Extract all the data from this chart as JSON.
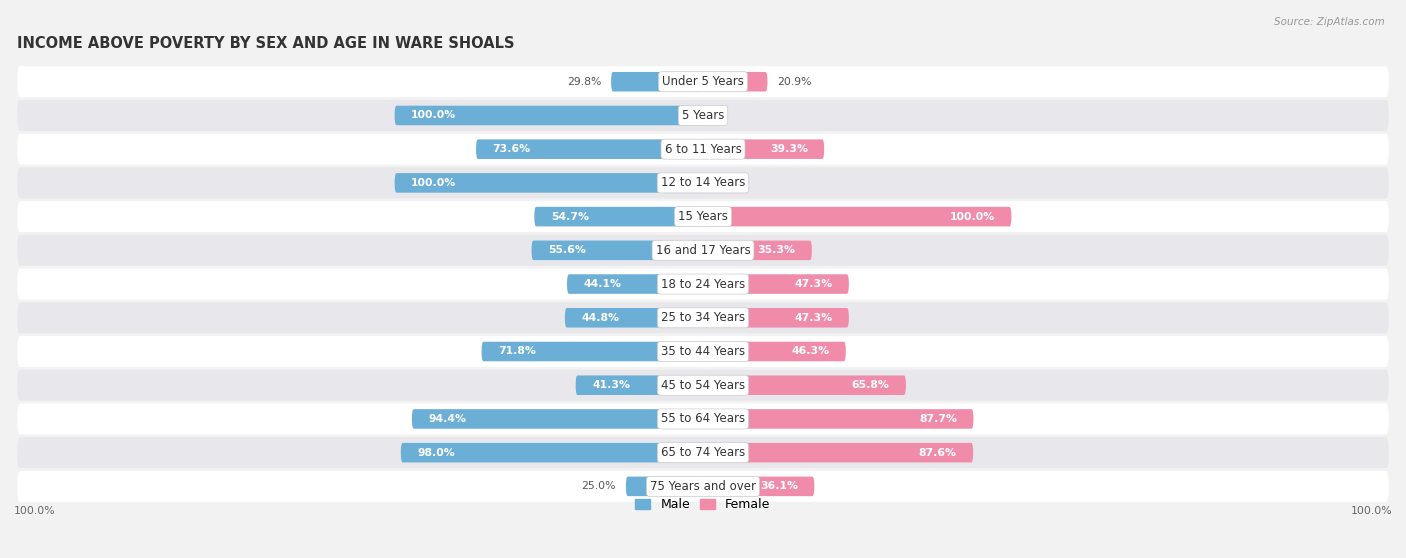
{
  "title": "INCOME ABOVE POVERTY BY SEX AND AGE IN WARE SHOALS",
  "source": "Source: ZipAtlas.com",
  "categories": [
    "Under 5 Years",
    "5 Years",
    "6 to 11 Years",
    "12 to 14 Years",
    "15 Years",
    "16 and 17 Years",
    "18 to 24 Years",
    "25 to 34 Years",
    "35 to 44 Years",
    "45 to 54 Years",
    "55 to 64 Years",
    "65 to 74 Years",
    "75 Years and over"
  ],
  "male": [
    29.8,
    100.0,
    73.6,
    100.0,
    54.7,
    55.6,
    44.1,
    44.8,
    71.8,
    41.3,
    94.4,
    98.0,
    25.0
  ],
  "female": [
    20.9,
    0.0,
    39.3,
    0.0,
    100.0,
    35.3,
    47.3,
    47.3,
    46.3,
    65.8,
    87.7,
    87.6,
    36.1
  ],
  "male_color": "#6baed6",
  "female_color": "#f08caa",
  "male_color_light": "#b8d4e8",
  "female_color_light": "#f8c0d0",
  "male_label": "Male",
  "female_label": "Female",
  "bg_color": "#f2f2f2",
  "row_bg_light": "#ffffff",
  "row_bg_dark": "#e8e8ec",
  "axis_label": "100.0%",
  "title_fontsize": 10.5,
  "label_fontsize": 8.5,
  "bar_label_fontsize": 7.8
}
